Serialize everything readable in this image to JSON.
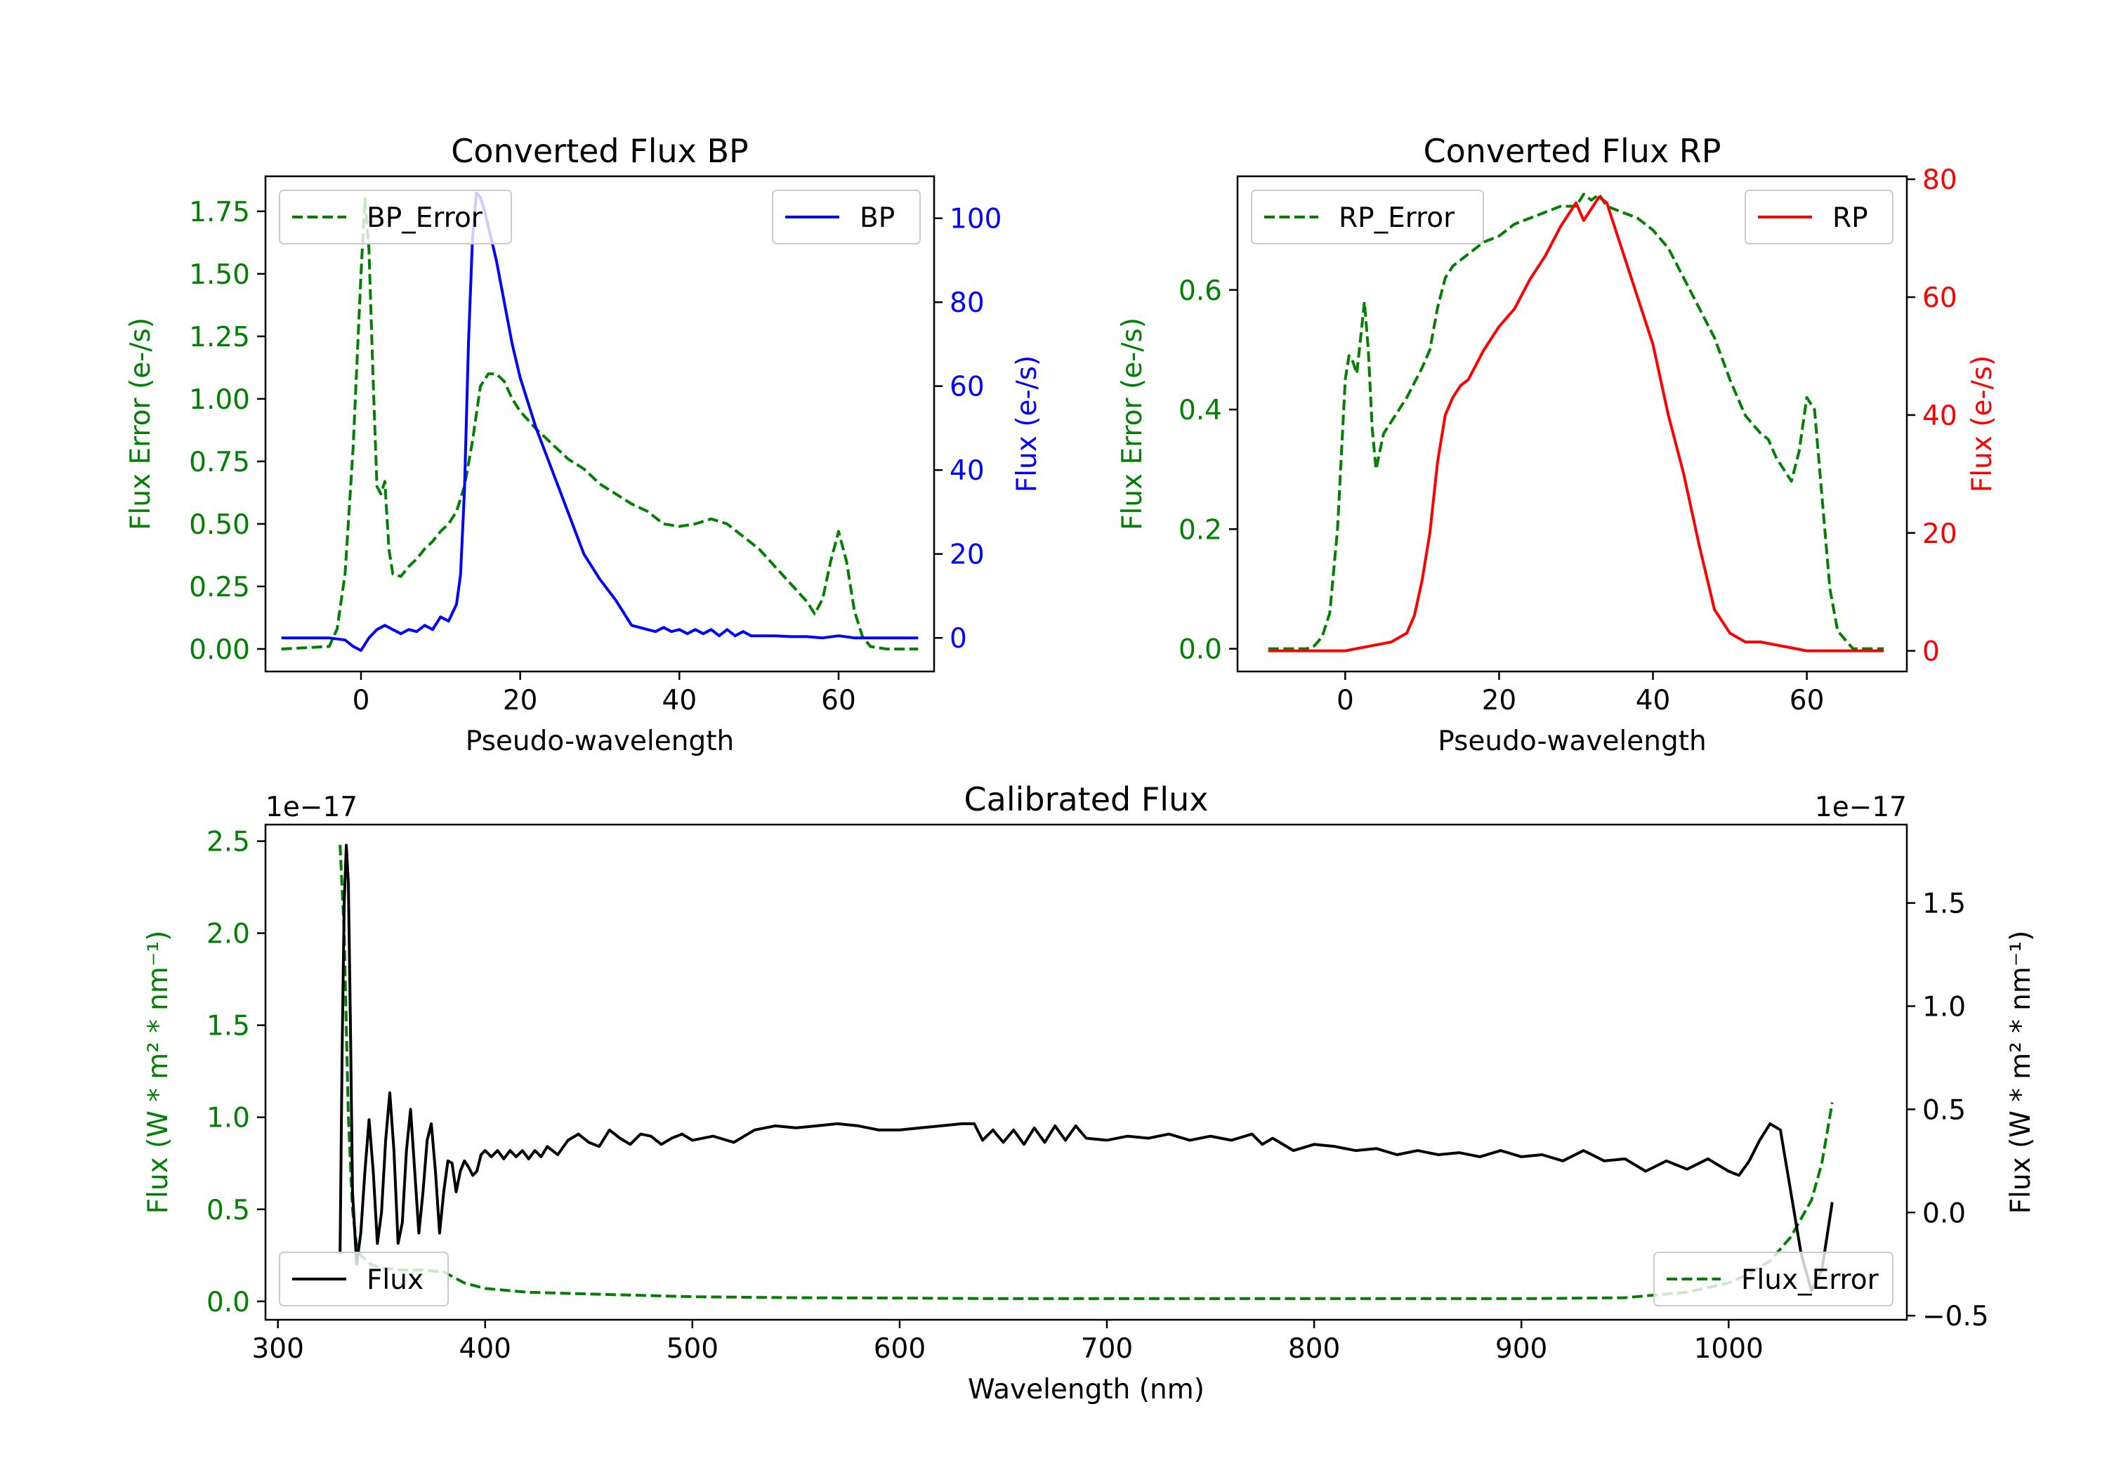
{
  "chart_data": [
    {
      "type": "line",
      "title": "Converted Flux BP",
      "xlabel": "Pseudo-wavelength",
      "ylabel_left": "Flux Error (e-/s)",
      "ylabel_right": "Flux (e-/s)",
      "xlim": [
        -12,
        72
      ],
      "ylim_left": [
        -0.09,
        1.89
      ],
      "ylim_right": [
        -8,
        110
      ],
      "xticks": [
        0,
        20,
        40,
        60
      ],
      "yticks_left": [
        0.0,
        0.25,
        0.5,
        0.75,
        1.0,
        1.25,
        1.5,
        1.75
      ],
      "yticks_right": [
        0,
        20,
        40,
        60,
        80,
        100
      ],
      "xtick_labels": [
        "0",
        "20",
        "40",
        "60"
      ],
      "ytick_labels_left": [
        "0.00",
        "0.25",
        "0.50",
        "0.75",
        "1.00",
        "1.25",
        "1.50",
        "1.75"
      ],
      "ytick_labels_right": [
        "0",
        "20",
        "40",
        "60",
        "80",
        "100"
      ],
      "color_left": "#008000",
      "color_right": "#0000ff",
      "series": [
        {
          "name": "BP_Error",
          "axis": "left",
          "style": "dashed",
          "color": "#008000",
          "legend": "top-left",
          "x": [
            -10,
            -4,
            -3,
            -2,
            -1,
            0,
            0.5,
            1,
            1.5,
            2,
            2.5,
            3,
            3.5,
            4,
            5,
            6,
            7,
            8,
            9,
            10,
            11,
            12,
            13,
            14,
            15,
            16,
            17,
            18,
            19,
            20,
            22,
            24,
            26,
            28,
            30,
            32,
            34,
            36,
            38,
            40,
            42,
            44,
            46,
            48,
            50,
            52,
            54,
            56,
            57,
            58,
            59,
            60,
            61,
            62,
            63,
            64,
            66,
            68,
            70
          ],
          "y": [
            0.0,
            0.01,
            0.08,
            0.3,
            0.8,
            1.5,
            1.8,
            1.6,
            1.1,
            0.65,
            0.62,
            0.67,
            0.4,
            0.3,
            0.29,
            0.33,
            0.36,
            0.4,
            0.43,
            0.47,
            0.5,
            0.55,
            0.65,
            0.83,
            1.05,
            1.1,
            1.1,
            1.07,
            1.0,
            0.95,
            0.88,
            0.82,
            0.76,
            0.72,
            0.66,
            0.62,
            0.58,
            0.55,
            0.5,
            0.49,
            0.5,
            0.52,
            0.5,
            0.45,
            0.4,
            0.33,
            0.26,
            0.19,
            0.14,
            0.2,
            0.35,
            0.47,
            0.35,
            0.15,
            0.05,
            0.01,
            0.0,
            0.0,
            0.0
          ]
        },
        {
          "name": "BP",
          "axis": "right",
          "style": "solid",
          "color": "#0000ff",
          "legend": "top-right",
          "x": [
            -10,
            -6,
            -4,
            -2,
            -1,
            0,
            1,
            2,
            3,
            4,
            5,
            6,
            7,
            8,
            9,
            10,
            11,
            12,
            12.5,
            13,
            13.5,
            14,
            14.5,
            15,
            15.5,
            16,
            17,
            18,
            19,
            20,
            22,
            24,
            26,
            28,
            30,
            32,
            34,
            36,
            37,
            38,
            39,
            40,
            41,
            42,
            43,
            44,
            45,
            46,
            47,
            48,
            49,
            50,
            52,
            54,
            56,
            58,
            60,
            62,
            65,
            70
          ],
          "y": [
            0,
            0,
            0,
            -0.5,
            -2,
            -3,
            0,
            2,
            3,
            2,
            1,
            2,
            1.5,
            3,
            2,
            5,
            4,
            8,
            15,
            35,
            70,
            95,
            106,
            105,
            102,
            98,
            90,
            80,
            70,
            62,
            50,
            40,
            30,
            20,
            14,
            9,
            3,
            2,
            1.5,
            2.5,
            1.5,
            2,
            1,
            2,
            1,
            2,
            0.5,
            2,
            0.5,
            1.5,
            0.5,
            0.5,
            0.5,
            0.3,
            0.3,
            0,
            0.5,
            0,
            0,
            0
          ]
        }
      ]
    },
    {
      "type": "line",
      "title": "Converted Flux RP",
      "xlabel": "Pseudo-wavelength",
      "ylabel_left": "Flux Error (e-/s)",
      "ylabel_right": "Flux (e-/s)",
      "xlim": [
        -14,
        73
      ],
      "ylim_left": [
        -0.038,
        0.79
      ],
      "ylim_right": [
        -3.5,
        80.5
      ],
      "xticks": [
        0,
        20,
        40,
        60
      ],
      "yticks_left": [
        0.0,
        0.2,
        0.4,
        0.6
      ],
      "yticks_right": [
        0,
        20,
        40,
        60,
        80
      ],
      "xtick_labels": [
        "0",
        "20",
        "40",
        "60"
      ],
      "ytick_labels_left": [
        "0.0",
        "0.2",
        "0.4",
        "0.6"
      ],
      "ytick_labels_right": [
        "0",
        "20",
        "40",
        "60",
        "80"
      ],
      "color_left": "#008000",
      "color_right": "#ff0000",
      "series": [
        {
          "name": "RP_Error",
          "axis": "left",
          "style": "dashed",
          "color": "#008000",
          "legend": "top-left",
          "x": [
            -10,
            -5,
            -4,
            -3,
            -2,
            -1,
            0,
            0.5,
            1,
            1.5,
            2,
            2.5,
            3,
            3.5,
            4,
            5,
            6,
            8,
            10,
            11,
            12,
            13,
            14,
            16,
            18,
            20,
            22,
            24,
            26,
            28,
            30,
            31,
            32,
            33,
            34,
            36,
            38,
            40,
            42,
            44,
            46,
            48,
            50,
            52,
            54,
            55,
            56,
            57,
            58,
            59,
            60,
            61,
            62,
            63,
            64,
            66,
            68,
            70
          ],
          "y": [
            0.0,
            0.0,
            0.005,
            0.02,
            0.06,
            0.2,
            0.45,
            0.49,
            0.48,
            0.46,
            0.52,
            0.58,
            0.5,
            0.37,
            0.3,
            0.36,
            0.38,
            0.42,
            0.47,
            0.5,
            0.57,
            0.62,
            0.64,
            0.66,
            0.68,
            0.69,
            0.71,
            0.72,
            0.73,
            0.74,
            0.74,
            0.76,
            0.75,
            0.76,
            0.74,
            0.73,
            0.72,
            0.7,
            0.67,
            0.62,
            0.57,
            0.52,
            0.45,
            0.39,
            0.36,
            0.35,
            0.32,
            0.3,
            0.28,
            0.33,
            0.42,
            0.4,
            0.25,
            0.1,
            0.03,
            0.0,
            0.0,
            0.0
          ]
        },
        {
          "name": "RP",
          "axis": "right",
          "style": "solid",
          "color": "#ff0000",
          "legend": "top-right",
          "x": [
            -10,
            -5,
            0,
            2,
            4,
            6,
            8,
            9,
            10,
            11,
            12,
            13,
            14,
            15,
            16,
            18,
            20,
            22,
            24,
            26,
            28,
            29,
            30,
            31,
            32,
            33,
            34,
            35,
            36,
            38,
            40,
            42,
            44,
            46,
            48,
            50,
            52,
            54,
            56,
            58,
            60,
            62,
            65,
            70
          ],
          "y": [
            0,
            0,
            0,
            0.5,
            1,
            1.5,
            3,
            6,
            12,
            20,
            32,
            40,
            43,
            45,
            46,
            51,
            55,
            58,
            63,
            67,
            72,
            74,
            76,
            73,
            75,
            77,
            76,
            72,
            68,
            60,
            52,
            40,
            30,
            18,
            7,
            3,
            1.5,
            1.5,
            1,
            0.5,
            0,
            0,
            0,
            0
          ]
        }
      ]
    },
    {
      "type": "line",
      "title": "Calibrated Flux",
      "xlabel": "Wavelength (nm)",
      "ylabel_left": "Flux (W * m² * nm⁻¹)",
      "ylabel_right": "Flux (W * m² * nm⁻¹)",
      "offset_left": "1e−17",
      "offset_right": "1e−17",
      "xlim": [
        294,
        1086
      ],
      "ylim_left": [
        -0.1,
        2.59
      ],
      "ylim_right": [
        -0.52,
        1.88
      ],
      "xticks": [
        300,
        400,
        500,
        600,
        700,
        800,
        900,
        1000
      ],
      "yticks_left": [
        0.0,
        0.5,
        1.0,
        1.5,
        2.0,
        2.5
      ],
      "yticks_right": [
        -0.5,
        0.0,
        0.5,
        1.0,
        1.5
      ],
      "xtick_labels": [
        "300",
        "400",
        "500",
        "600",
        "700",
        "800",
        "900",
        "1000"
      ],
      "ytick_labels_left": [
        "0.0",
        "0.5",
        "1.0",
        "1.5",
        "2.0",
        "2.5"
      ],
      "ytick_labels_right": [
        "−0.5",
        "0.0",
        "0.5",
        "1.0",
        "1.5"
      ],
      "color_left": "#008000",
      "color_right": "#000000",
      "series": [
        {
          "name": "Flux_Error",
          "axis": "left",
          "style": "dashed",
          "color": "#008000",
          "legend": "bottom-right",
          "x": [
            330,
            332,
            334,
            336,
            338,
            340,
            345,
            350,
            360,
            370,
            380,
            390,
            400,
            420,
            450,
            500,
            550,
            600,
            650,
            700,
            750,
            800,
            850,
            900,
            950,
            980,
            1000,
            1010,
            1020,
            1030,
            1040,
            1045,
            1050
          ],
          "y": [
            2.48,
            2.0,
            1.0,
            0.5,
            0.3,
            0.25,
            0.2,
            0.18,
            0.17,
            0.17,
            0.16,
            0.1,
            0.07,
            0.05,
            0.04,
            0.025,
            0.02,
            0.018,
            0.015,
            0.015,
            0.015,
            0.015,
            0.015,
            0.015,
            0.02,
            0.05,
            0.1,
            0.15,
            0.22,
            0.35,
            0.55,
            0.75,
            1.08
          ]
        },
        {
          "name": "Flux",
          "axis": "right",
          "style": "solid",
          "color": "#000000",
          "legend": "bottom-left",
          "x": [
            330,
            331,
            332,
            333,
            334,
            335,
            336,
            338,
            340,
            342,
            344,
            346,
            348,
            350,
            352,
            354,
            356,
            358,
            360,
            362,
            364,
            366,
            368,
            370,
            372,
            374,
            376,
            378,
            380,
            382,
            384,
            386,
            388,
            390,
            392,
            394,
            396,
            398,
            400,
            403,
            406,
            409,
            412,
            415,
            418,
            421,
            424,
            427,
            430,
            435,
            440,
            445,
            450,
            455,
            460,
            465,
            470,
            475,
            480,
            485,
            490,
            495,
            500,
            510,
            520,
            530,
            540,
            550,
            560,
            570,
            580,
            590,
            600,
            610,
            620,
            630,
            636,
            640,
            645,
            650,
            655,
            660,
            665,
            670,
            675,
            680,
            685,
            690,
            700,
            710,
            720,
            730,
            740,
            750,
            760,
            770,
            775,
            780,
            790,
            800,
            810,
            820,
            830,
            840,
            850,
            860,
            870,
            880,
            890,
            900,
            910,
            920,
            930,
            940,
            950,
            960,
            970,
            980,
            990,
            1000,
            1005,
            1010,
            1015,
            1020,
            1025,
            1030,
            1035,
            1040,
            1045,
            1050
          ],
          "y": [
            -0.2,
            0.8,
            1.5,
            1.78,
            1.6,
            0.9,
            0.1,
            -0.25,
            -0.1,
            0.2,
            0.45,
            0.2,
            -0.15,
            0.0,
            0.35,
            0.58,
            0.3,
            -0.15,
            -0.05,
            0.3,
            0.5,
            0.2,
            -0.1,
            0.1,
            0.35,
            0.43,
            0.2,
            -0.1,
            0.1,
            0.25,
            0.24,
            0.1,
            0.2,
            0.25,
            0.22,
            0.18,
            0.2,
            0.28,
            0.3,
            0.27,
            0.3,
            0.26,
            0.3,
            0.27,
            0.3,
            0.26,
            0.3,
            0.27,
            0.32,
            0.28,
            0.35,
            0.38,
            0.34,
            0.32,
            0.4,
            0.36,
            0.33,
            0.38,
            0.37,
            0.33,
            0.36,
            0.38,
            0.35,
            0.37,
            0.34,
            0.4,
            0.42,
            0.41,
            0.42,
            0.43,
            0.42,
            0.4,
            0.4,
            0.41,
            0.42,
            0.43,
            0.43,
            0.35,
            0.4,
            0.34,
            0.4,
            0.33,
            0.41,
            0.34,
            0.42,
            0.35,
            0.42,
            0.36,
            0.35,
            0.37,
            0.36,
            0.38,
            0.35,
            0.37,
            0.35,
            0.38,
            0.33,
            0.36,
            0.3,
            0.33,
            0.32,
            0.3,
            0.31,
            0.28,
            0.3,
            0.28,
            0.29,
            0.27,
            0.3,
            0.27,
            0.28,
            0.25,
            0.3,
            0.25,
            0.26,
            0.2,
            0.25,
            0.21,
            0.26,
            0.2,
            0.18,
            0.25,
            0.35,
            0.43,
            0.4,
            0.1,
            -0.2,
            -0.38,
            -0.28,
            0.05
          ]
        }
      ]
    }
  ]
}
